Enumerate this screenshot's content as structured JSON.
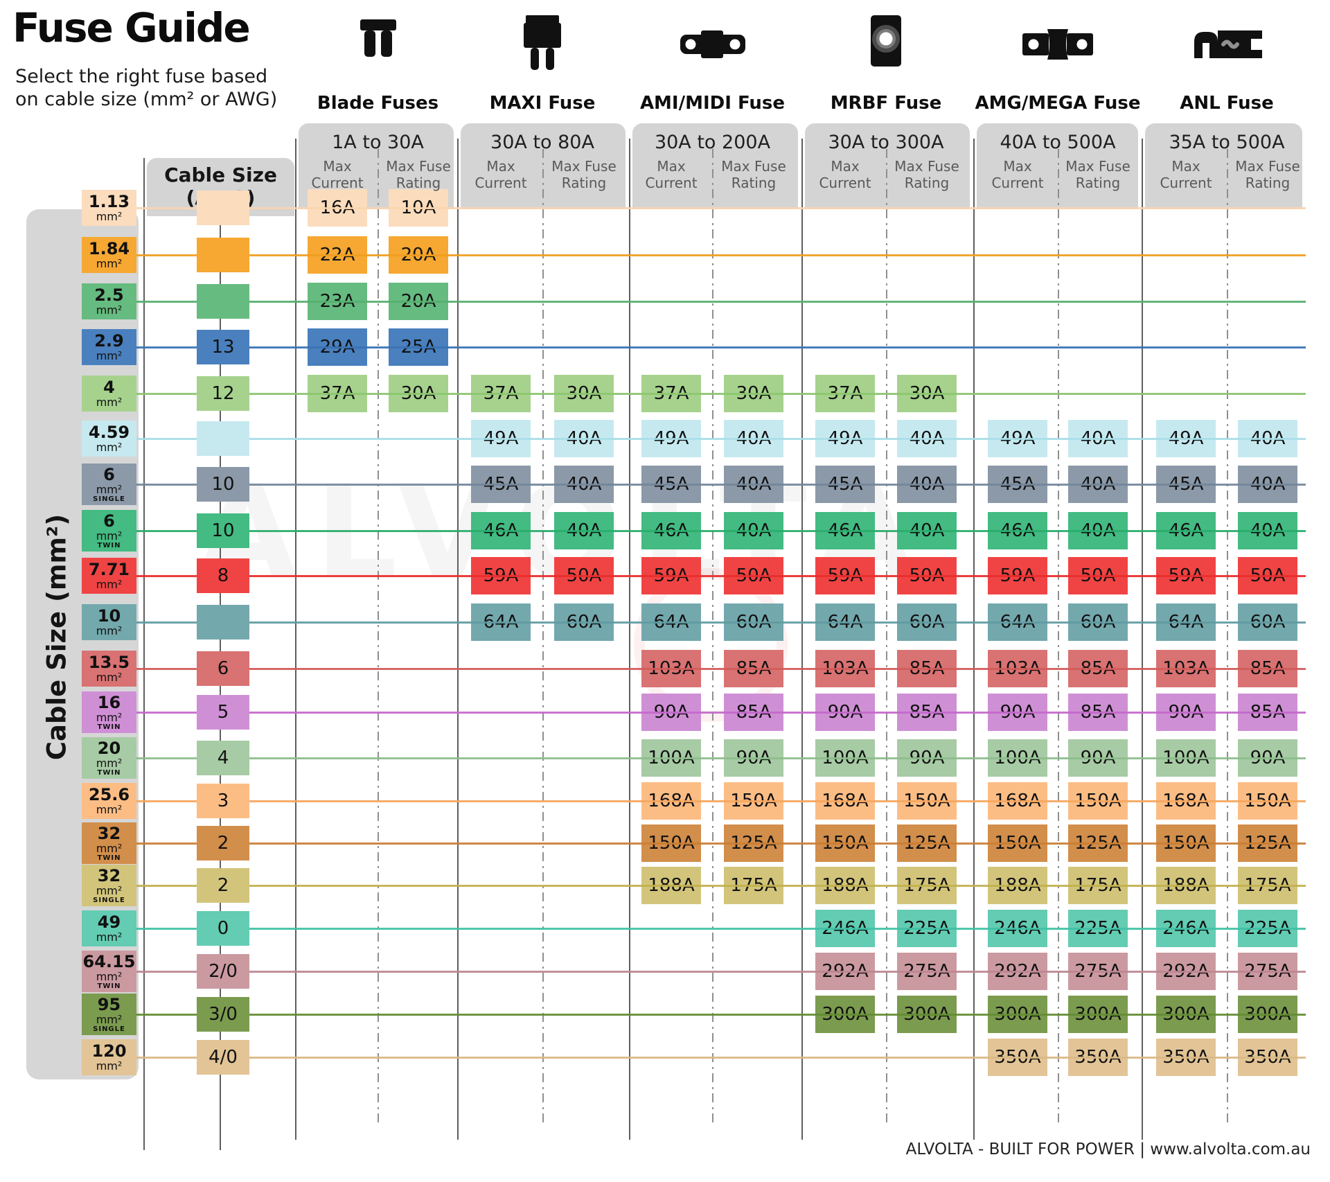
{
  "header": {
    "title": "Fuse Guide",
    "subtitle_line1": "Select the right fuse based",
    "subtitle_line2": "on cable size (mm² or AWG)"
  },
  "watermark": {
    "text": "ALVOLTA"
  },
  "footer": {
    "text": "ALVOLTA - BUILT FOR POWER | www.alvolta.com.au"
  },
  "axes": {
    "left_label": "Cable Size (mm²)",
    "awg_header_line1": "Cable Size",
    "awg_header_line2": "(AWG)",
    "unit_label": "mm²"
  },
  "column_subheaders": {
    "max_current": "Max Current",
    "max_fuse_rating": "Max Fuse Rating"
  },
  "fuse_types": [
    {
      "name": "Blade Fuses",
      "icon": "blade-fuse-icon",
      "range": "1A to 30A"
    },
    {
      "name": "MAXI Fuse",
      "icon": "maxi-fuse-icon",
      "range": "30A to 80A"
    },
    {
      "name": "AMI/MIDI Fuse",
      "icon": "ami-midi-fuse-icon",
      "range": "30A to 200A"
    },
    {
      "name": "MRBF Fuse",
      "icon": "mrbf-fuse-icon",
      "range": "30A to 300A"
    },
    {
      "name": "AMG/MEGA Fuse",
      "icon": "amg-mega-fuse-icon",
      "range": "40A to 500A"
    },
    {
      "name": "ANL Fuse",
      "icon": "anl-fuse-icon",
      "range": "35A to 500A"
    }
  ],
  "rows": [
    {
      "size": "1.13",
      "variant": "",
      "awg": "",
      "color": "#fbdcbd",
      "line_color": "#f8d5ae",
      "cells": [
        [
          "16A",
          "10A"
        ],
        null,
        null,
        null,
        null,
        null
      ]
    },
    {
      "size": "1.84",
      "variant": "",
      "awg": "",
      "color": "#f6a832",
      "line_color": "#f09e1f",
      "cells": [
        [
          "22A",
          "20A"
        ],
        null,
        null,
        null,
        null,
        null
      ]
    },
    {
      "size": "2.5",
      "variant": "",
      "awg": "",
      "color": "#66bb80",
      "line_color": "#54b06f",
      "cells": [
        [
          "23A",
          "20A"
        ],
        null,
        null,
        null,
        null,
        null
      ]
    },
    {
      "size": "2.9",
      "variant": "",
      "awg": "13",
      "color": "#4a80be",
      "line_color": "#3a72b4",
      "cells": [
        [
          "29A",
          "25A"
        ],
        null,
        null,
        null,
        null,
        null
      ]
    },
    {
      "size": "4",
      "variant": "",
      "awg": "12",
      "color": "#a6d28d",
      "line_color": "#8cc66f",
      "cells": [
        [
          "37A",
          "30A"
        ],
        [
          "37A",
          "30A"
        ],
        [
          "37A",
          "30A"
        ],
        [
          "37A",
          "30A"
        ],
        null,
        null
      ]
    },
    {
      "size": "4.59",
      "variant": "",
      "awg": "",
      "color": "#c6e9f0",
      "line_color": "#a8dde7",
      "cells": [
        null,
        [
          "49A",
          "40A"
        ],
        [
          "49A",
          "40A"
        ],
        [
          "49A",
          "40A"
        ],
        [
          "49A",
          "40A"
        ],
        [
          "49A",
          "40A"
        ]
      ]
    },
    {
      "size": "6",
      "variant": "SINGLE",
      "awg": "10",
      "color": "#8b99a8",
      "line_color": "#73869a",
      "cells": [
        null,
        [
          "45A",
          "40A"
        ],
        [
          "45A",
          "40A"
        ],
        [
          "45A",
          "40A"
        ],
        [
          "45A",
          "40A"
        ],
        [
          "45A",
          "40A"
        ]
      ]
    },
    {
      "size": "6",
      "variant": "TWIN",
      "awg": "10",
      "color": "#43bb82",
      "line_color": "#2aac6d",
      "cells": [
        null,
        [
          "46A",
          "40A"
        ],
        [
          "46A",
          "40A"
        ],
        [
          "46A",
          "40A"
        ],
        [
          "46A",
          "40A"
        ],
        [
          "46A",
          "40A"
        ]
      ]
    },
    {
      "size": "7.71",
      "variant": "",
      "awg": "8",
      "color": "#f04444",
      "line_color": "#ea2c2c",
      "cells": [
        null,
        [
          "59A",
          "50A"
        ],
        [
          "59A",
          "50A"
        ],
        [
          "59A",
          "50A"
        ],
        [
          "59A",
          "50A"
        ],
        [
          "59A",
          "50A"
        ]
      ]
    },
    {
      "size": "10",
      "variant": "",
      "awg": "",
      "color": "#73a8ad",
      "line_color": "#5f9ba1",
      "cells": [
        null,
        [
          "64A",
          "60A"
        ],
        [
          "64A",
          "60A"
        ],
        [
          "64A",
          "60A"
        ],
        [
          "64A",
          "60A"
        ],
        [
          "64A",
          "60A"
        ]
      ]
    },
    {
      "size": "13.5",
      "variant": "",
      "awg": "6",
      "color": "#d97272",
      "line_color": "#d35b5b",
      "cells": [
        null,
        null,
        [
          "103A",
          "85A"
        ],
        [
          "103A",
          "85A"
        ],
        [
          "103A",
          "85A"
        ],
        [
          "103A",
          "85A"
        ]
      ]
    },
    {
      "size": "16",
      "variant": "TWIN",
      "awg": "5",
      "color": "#cf8fd5",
      "line_color": "#c369cb",
      "cells": [
        null,
        null,
        [
          "90A",
          "85A"
        ],
        [
          "90A",
          "85A"
        ],
        [
          "90A",
          "85A"
        ],
        [
          "90A",
          "85A"
        ]
      ]
    },
    {
      "size": "20",
      "variant": "TWIN",
      "awg": "4",
      "color": "#a7cba4",
      "line_color": "#8dbd8d",
      "cells": [
        null,
        null,
        [
          "100A",
          "90A"
        ],
        [
          "100A",
          "90A"
        ],
        [
          "100A",
          "90A"
        ],
        [
          "100A",
          "90A"
        ]
      ]
    },
    {
      "size": "25.6",
      "variant": "",
      "awg": "3",
      "color": "#fcbd85",
      "line_color": "#f6a65d",
      "cells": [
        null,
        null,
        [
          "168A",
          "150A"
        ],
        [
          "168A",
          "150A"
        ],
        [
          "168A",
          "150A"
        ],
        [
          "168A",
          "150A"
        ]
      ]
    },
    {
      "size": "32",
      "variant": "TWIN",
      "awg": "2",
      "color": "#d28e4b",
      "line_color": "#ca7e33",
      "cells": [
        null,
        null,
        [
          "150A",
          "125A"
        ],
        [
          "150A",
          "125A"
        ],
        [
          "150A",
          "125A"
        ],
        [
          "150A",
          "125A"
        ]
      ]
    },
    {
      "size": "32",
      "variant": "SINGLE",
      "awg": "2",
      "color": "#d2c57b",
      "line_color": "#c1b04e",
      "cells": [
        null,
        null,
        [
          "188A",
          "175A"
        ],
        [
          "188A",
          "175A"
        ],
        [
          "188A",
          "175A"
        ],
        [
          "188A",
          "175A"
        ]
      ]
    },
    {
      "size": "49",
      "variant": "",
      "awg": "0",
      "color": "#63ccb3",
      "line_color": "#40c1a5",
      "cells": [
        null,
        null,
        null,
        [
          "246A",
          "225A"
        ],
        [
          "246A",
          "225A"
        ],
        [
          "246A",
          "225A"
        ]
      ]
    },
    {
      "size": "64.15",
      "variant": "TWIN",
      "awg": "2/0",
      "color": "#cb9aa0",
      "line_color": "#bd8790",
      "cells": [
        null,
        null,
        null,
        [
          "292A",
          "275A"
        ],
        [
          "292A",
          "275A"
        ],
        [
          "292A",
          "275A"
        ]
      ]
    },
    {
      "size": "95",
      "variant": "SINGLE",
      "awg": "3/0",
      "color": "#7b9b4f",
      "line_color": "#638c33",
      "cells": [
        null,
        null,
        null,
        [
          "300A",
          "300A"
        ],
        [
          "300A",
          "300A"
        ],
        [
          "300A",
          "300A"
        ]
      ]
    },
    {
      "size": "120",
      "variant": "",
      "awg": "4/0",
      "color": "#e2c496",
      "line_color": "#d9b884",
      "cells": [
        null,
        null,
        null,
        null,
        [
          "350A",
          "350A"
        ],
        [
          "350A",
          "350A"
        ]
      ]
    }
  ],
  "chart_data": {
    "type": "table",
    "title": "Fuse Guide",
    "subtitle": "Select the right fuse based on cable size (mm² or AWG)",
    "columns": [
      "Cable Size (mm²)",
      "Cable Size (AWG)",
      "Blade Fuses Max Current",
      "Blade Fuses Max Fuse Rating",
      "MAXI Fuse Max Current",
      "MAXI Fuse Max Fuse Rating",
      "AMI/MIDI Fuse Max Current",
      "AMI/MIDI Fuse Max Fuse Rating",
      "MRBF Fuse Max Current",
      "MRBF Fuse Max Fuse Rating",
      "AMG/MEGA Fuse Max Current",
      "AMG/MEGA Fuse Max Fuse Rating",
      "ANL Fuse Max Current",
      "ANL Fuse Max Fuse Rating"
    ],
    "fuse_ranges": [
      "1A to 30A",
      "30A to 80A",
      "30A to 200A",
      "30A to 300A",
      "40A to 500A",
      "35A to 500A"
    ],
    "rows": [
      [
        "1.13",
        "",
        "16A",
        "10A",
        "",
        "",
        "",
        "",
        "",
        "",
        "",
        "",
        "",
        ""
      ],
      [
        "1.84",
        "",
        "22A",
        "20A",
        "",
        "",
        "",
        "",
        "",
        "",
        "",
        "",
        "",
        ""
      ],
      [
        "2.5",
        "",
        "23A",
        "20A",
        "",
        "",
        "",
        "",
        "",
        "",
        "",
        "",
        "",
        ""
      ],
      [
        "2.9",
        "13",
        "29A",
        "25A",
        "",
        "",
        "",
        "",
        "",
        "",
        "",
        "",
        "",
        ""
      ],
      [
        "4",
        "12",
        "37A",
        "30A",
        "37A",
        "30A",
        "37A",
        "30A",
        "37A",
        "30A",
        "",
        "",
        "",
        ""
      ],
      [
        "4.59",
        "",
        "",
        "",
        "49A",
        "40A",
        "49A",
        "40A",
        "49A",
        "40A",
        "49A",
        "40A",
        "49A",
        "40A"
      ],
      [
        "6 SINGLE",
        "10",
        "",
        "",
        "45A",
        "40A",
        "45A",
        "40A",
        "45A",
        "40A",
        "45A",
        "40A",
        "45A",
        "40A"
      ],
      [
        "6 TWIN",
        "10",
        "",
        "",
        "46A",
        "40A",
        "46A",
        "40A",
        "46A",
        "40A",
        "46A",
        "40A",
        "46A",
        "40A"
      ],
      [
        "7.71",
        "8",
        "",
        "",
        "59A",
        "50A",
        "59A",
        "50A",
        "59A",
        "50A",
        "59A",
        "50A",
        "59A",
        "50A"
      ],
      [
        "10",
        "",
        "",
        "",
        "64A",
        "60A",
        "64A",
        "60A",
        "64A",
        "60A",
        "64A",
        "60A",
        "64A",
        "60A"
      ],
      [
        "13.5",
        "6",
        "",
        "",
        "",
        "",
        "103A",
        "85A",
        "103A",
        "85A",
        "103A",
        "85A",
        "103A",
        "85A"
      ],
      [
        "16 TWIN",
        "5",
        "",
        "",
        "",
        "",
        "90A",
        "85A",
        "90A",
        "85A",
        "90A",
        "85A",
        "90A",
        "85A"
      ],
      [
        "20 TWIN",
        "4",
        "",
        "",
        "",
        "",
        "100A",
        "90A",
        "100A",
        "90A",
        "100A",
        "90A",
        "100A",
        "90A"
      ],
      [
        "25.6",
        "3",
        "",
        "",
        "",
        "",
        "168A",
        "150A",
        "168A",
        "150A",
        "168A",
        "150A",
        "168A",
        "150A"
      ],
      [
        "32 TWIN",
        "2",
        "",
        "",
        "",
        "",
        "150A",
        "125A",
        "150A",
        "125A",
        "150A",
        "125A",
        "150A",
        "125A"
      ],
      [
        "32 SINGLE",
        "2",
        "",
        "",
        "",
        "",
        "188A",
        "175A",
        "188A",
        "175A",
        "188A",
        "175A",
        "188A",
        "175A"
      ],
      [
        "49",
        "0",
        "",
        "",
        "",
        "",
        "",
        "",
        "246A",
        "225A",
        "246A",
        "225A",
        "246A",
        "225A"
      ],
      [
        "64.15 TWIN",
        "2/0",
        "",
        "",
        "",
        "",
        "",
        "",
        "292A",
        "275A",
        "292A",
        "275A",
        "292A",
        "275A"
      ],
      [
        "95 SINGLE",
        "3/0",
        "",
        "",
        "",
        "",
        "",
        "",
        "300A",
        "300A",
        "300A",
        "300A",
        "300A",
        "300A"
      ],
      [
        "120",
        "4/0",
        "",
        "",
        "",
        "",
        "",
        "",
        "",
        "",
        "350A",
        "350A",
        "350A",
        "350A"
      ]
    ]
  }
}
